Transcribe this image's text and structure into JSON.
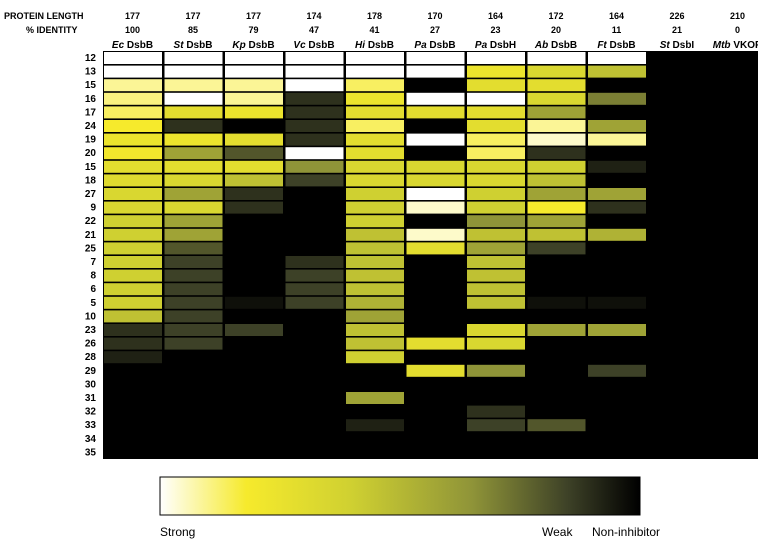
{
  "chart_data": {
    "type": "heatmap",
    "header_labels": {
      "protein_length": "PROTEIN LENGTH",
      "identity": "% IDENTITY"
    },
    "columns": [
      {
        "species": "Ec",
        "protein": "DsbB",
        "length": "177",
        "identity": "100"
      },
      {
        "species": "St",
        "protein": "DsbB",
        "length": "177",
        "identity": "85"
      },
      {
        "species": "Kp",
        "protein": "DsbB",
        "length": "177",
        "identity": "79"
      },
      {
        "species": "Vc",
        "protein": "DsbB",
        "length": "174",
        "identity": "47"
      },
      {
        "species": "Hi",
        "protein": "DsbB",
        "length": "178",
        "identity": "41"
      },
      {
        "species": "Pa",
        "protein": "DsbB",
        "length": "170",
        "identity": "27"
      },
      {
        "species": "Pa",
        "protein": "DsbH",
        "length": "164",
        "identity": "23"
      },
      {
        "species": "Ab",
        "protein": "DsbB",
        "length": "172",
        "identity": "20"
      },
      {
        "species": "Ft",
        "protein": "DsbB",
        "length": "164",
        "identity": "11"
      },
      {
        "species": "St",
        "protein": "DsbI",
        "length": "226",
        "identity": "21"
      },
      {
        "species": "Mtb",
        "protein": "VKOR",
        "length": "210",
        "identity": "0"
      }
    ],
    "rows": [
      "12",
      "13",
      "15",
      "16",
      "17",
      "24",
      "19",
      "20",
      "15",
      "18",
      "27",
      "9",
      "22",
      "21",
      "25",
      "7",
      "8",
      "6",
      "5",
      "10",
      "23",
      "26",
      "28",
      "29",
      "30",
      "31",
      "32",
      "33",
      "34",
      "35"
    ],
    "values": [
      [
        0.0,
        0.0,
        0.0,
        0.0,
        0.0,
        0.0,
        0.0,
        0.0,
        0.0,
        1,
        1
      ],
      [
        0.0,
        0.0,
        0.0,
        0.0,
        0.0,
        0.0,
        0.25,
        0.35,
        0.45,
        1,
        1
      ],
      [
        0.1,
        0.1,
        0.1,
        0.0,
        0.15,
        1,
        0.3,
        0.3,
        1,
        1,
        1
      ],
      [
        0.12,
        0.0,
        0.1,
        0.85,
        0.25,
        0.0,
        0.0,
        0.35,
        0.65,
        1,
        1
      ],
      [
        0.15,
        0.3,
        0.25,
        0.85,
        0.3,
        0.3,
        0.3,
        0.55,
        1,
        1,
        1
      ],
      [
        0.2,
        0.85,
        1,
        0.85,
        0.15,
        1,
        0.3,
        0.1,
        0.55,
        1,
        1
      ],
      [
        0.25,
        0.25,
        0.3,
        0.85,
        0.3,
        0.0,
        0.15,
        0.05,
        0.1,
        1,
        1
      ],
      [
        0.22,
        0.55,
        0.75,
        0.0,
        0.3,
        1,
        0.15,
        0.85,
        1,
        1,
        1
      ],
      [
        0.3,
        0.3,
        0.3,
        0.6,
        0.35,
        0.35,
        0.35,
        0.4,
        0.9,
        1,
        1
      ],
      [
        0.32,
        0.35,
        0.45,
        0.8,
        0.35,
        0.35,
        0.35,
        0.45,
        1,
        1,
        1
      ],
      [
        0.35,
        0.55,
        0.85,
        1,
        0.4,
        0.0,
        0.4,
        0.55,
        0.55,
        1,
        1
      ],
      [
        0.35,
        0.35,
        0.85,
        1,
        0.4,
        0.05,
        0.4,
        0.2,
        0.85,
        1,
        1
      ],
      [
        0.4,
        0.55,
        1,
        1,
        0.4,
        1,
        0.6,
        0.55,
        1,
        1,
        1
      ],
      [
        0.4,
        0.55,
        1,
        1,
        0.45,
        0.05,
        0.45,
        0.45,
        0.5,
        1,
        1
      ],
      [
        0.4,
        0.75,
        1,
        1,
        0.45,
        0.3,
        0.55,
        0.8,
        1,
        1,
        1
      ],
      [
        0.4,
        0.8,
        1,
        0.85,
        0.45,
        1,
        0.45,
        1,
        1,
        1,
        1
      ],
      [
        0.4,
        0.8,
        1,
        0.8,
        0.45,
        1,
        0.45,
        1,
        1,
        1,
        1
      ],
      [
        0.4,
        0.8,
        1,
        0.8,
        0.45,
        1,
        0.45,
        1,
        1,
        1,
        1
      ],
      [
        0.4,
        0.8,
        0.95,
        0.8,
        0.5,
        1,
        0.45,
        0.95,
        0.95,
        1,
        1
      ],
      [
        0.45,
        0.8,
        1,
        1,
        0.55,
        1,
        1,
        1,
        1,
        1,
        1
      ],
      [
        0.85,
        0.8,
        0.8,
        1,
        0.45,
        1,
        0.35,
        0.55,
        0.55,
        1,
        1
      ],
      [
        0.85,
        0.8,
        1,
        1,
        0.45,
        0.3,
        0.35,
        1,
        1,
        1,
        1
      ],
      [
        0.9,
        1,
        1,
        1,
        0.4,
        1,
        1,
        1,
        1,
        1,
        1
      ],
      [
        1,
        1,
        1,
        1,
        1,
        0.3,
        0.6,
        1,
        0.8,
        1,
        1
      ],
      [
        1,
        1,
        1,
        1,
        1,
        1,
        1,
        1,
        1,
        1,
        1
      ],
      [
        1,
        1,
        1,
        1,
        0.55,
        1,
        1,
        1,
        1,
        1,
        1
      ],
      [
        1,
        1,
        1,
        1,
        1,
        1,
        0.85,
        1,
        1,
        1,
        1
      ],
      [
        1,
        1,
        1,
        1,
        0.9,
        1,
        0.8,
        0.75,
        1,
        1,
        1
      ],
      [
        1,
        1,
        1,
        1,
        1,
        1,
        1,
        1,
        1,
        1,
        1
      ],
      [
        1,
        1,
        1,
        1,
        1,
        1,
        1,
        1,
        1,
        1,
        1
      ]
    ],
    "colorscale": [
      "#ffffff",
      "#f6ea2c",
      "#cfd031",
      "#8f9438",
      "#3d4127",
      "#000000"
    ],
    "legend": {
      "strong_label": "Strong",
      "weak_label": "Weak",
      "none_label": "Non-inhibitor"
    }
  }
}
